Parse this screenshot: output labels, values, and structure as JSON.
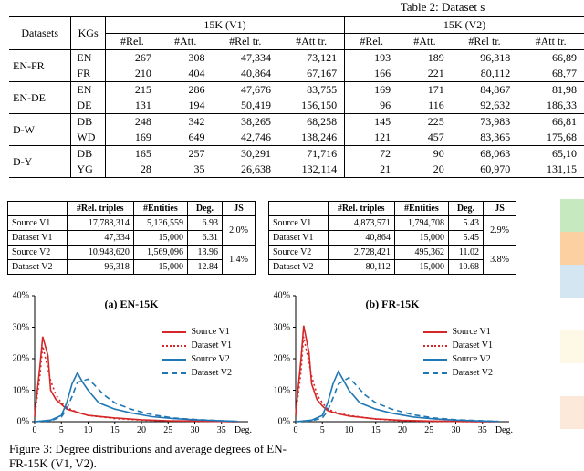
{
  "colors": {
    "text": "#000000",
    "background": "#ffffff",
    "rule": "#000000",
    "sourceV1": "#d62728",
    "datasetV1": "#d62728",
    "sourceV2": "#1f77b4",
    "datasetV2": "#1f77b4",
    "grid": "#000000"
  },
  "table2": {
    "caption": "Table 2: Dataset s",
    "head": {
      "datasets": "Datasets",
      "kgs": "KGs",
      "groups": [
        "15K (V1)",
        "15K (V2)"
      ],
      "sub": [
        "#Rel.",
        "#Att.",
        "#Rel tr.",
        "#Att tr."
      ]
    },
    "rows": [
      {
        "ds": "EN-FR",
        "kg": "EN",
        "v1": [
          "267",
          "308",
          "47,334",
          "73,121"
        ],
        "v2": [
          "193",
          "189",
          "96,318",
          "66,89"
        ]
      },
      {
        "ds": "",
        "kg": "FR",
        "v1": [
          "210",
          "404",
          "40,864",
          "67,167"
        ],
        "v2": [
          "166",
          "221",
          "80,112",
          "68,77"
        ]
      },
      {
        "ds": "EN-DE",
        "kg": "EN",
        "v1": [
          "215",
          "286",
          "47,676",
          "83,755"
        ],
        "v2": [
          "169",
          "171",
          "84,867",
          "81,98"
        ]
      },
      {
        "ds": "",
        "kg": "DE",
        "v1": [
          "131",
          "194",
          "50,419",
          "156,150"
        ],
        "v2": [
          "96",
          "116",
          "92,632",
          "186,33"
        ]
      },
      {
        "ds": "D-W",
        "kg": "DB",
        "v1": [
          "248",
          "342",
          "38,265",
          "68,258"
        ],
        "v2": [
          "145",
          "225",
          "73,983",
          "66,81"
        ]
      },
      {
        "ds": "",
        "kg": "WD",
        "v1": [
          "169",
          "649",
          "42,746",
          "138,246"
        ],
        "v2": [
          "121",
          "457",
          "83,365",
          "175,68"
        ]
      },
      {
        "ds": "D-Y",
        "kg": "DB",
        "v1": [
          "165",
          "257",
          "30,291",
          "71,716"
        ],
        "v2": [
          "72",
          "90",
          "68,063",
          "65,10"
        ]
      },
      {
        "ds": "",
        "kg": "YG",
        "v1": [
          "28",
          "35",
          "26,638",
          "132,114"
        ],
        "v2": [
          "21",
          "20",
          "60,970",
          "131,15"
        ]
      }
    ]
  },
  "miniTables": {
    "head": [
      "",
      "#Rel. triples",
      "#Entities",
      "Deg.",
      "JS"
    ],
    "left": {
      "rows": [
        [
          "Source V1",
          "17,788,314",
          "5,136,559",
          "6.93"
        ],
        [
          "Dataset V1",
          "47,334",
          "15,000",
          "6.31"
        ],
        [
          "Source V2",
          "10,948,620",
          "1,569,096",
          "13.96"
        ],
        [
          "Dataset V2",
          "96,318",
          "15,000",
          "12.84"
        ]
      ],
      "js": [
        "2.0%",
        "1.4%"
      ]
    },
    "right": {
      "rows": [
        [
          "Source V1",
          "4,873,571",
          "1,794,708",
          "5.43"
        ],
        [
          "Dataset V1",
          "40,864",
          "15,000",
          "5.45"
        ],
        [
          "Source V2",
          "2,728,421",
          "495,362",
          "11.02"
        ],
        [
          "Dataset V2",
          "80,112",
          "15,000",
          "10.68"
        ]
      ],
      "js": [
        "2.9%",
        "3.8%"
      ]
    }
  },
  "charts": {
    "type": "line",
    "xlim": [
      0,
      40
    ],
    "xticks": [
      0,
      5,
      10,
      15,
      20,
      25,
      30,
      35
    ],
    "ylim": [
      0,
      0.4
    ],
    "yticks": [
      0,
      0.1,
      0.2,
      0.3,
      0.4
    ],
    "ytick_labels": [
      "0%",
      "10%",
      "20%",
      "30%",
      "40%"
    ],
    "xlabel": "Deg.",
    "legend": [
      "Source V1",
      "Dataset V1",
      "Source V2",
      "Dataset V2"
    ],
    "panel_a": {
      "title": "(a) EN-15K",
      "sourceV1": [
        [
          0,
          0.02
        ],
        [
          1,
          0.18
        ],
        [
          1.5,
          0.27
        ],
        [
          2.5,
          0.21
        ],
        [
          3,
          0.1
        ],
        [
          4,
          0.07
        ],
        [
          5,
          0.055
        ],
        [
          6,
          0.04
        ],
        [
          8,
          0.03
        ],
        [
          10,
          0.02
        ],
        [
          15,
          0.012
        ],
        [
          20,
          0.006
        ],
        [
          25,
          0.003
        ],
        [
          30,
          0.002
        ],
        [
          35,
          0.001
        ],
        [
          38,
          0.0
        ]
      ],
      "datasetV1": [
        [
          0,
          0.015
        ],
        [
          1,
          0.15
        ],
        [
          1.5,
          0.24
        ],
        [
          3,
          0.13
        ],
        [
          4,
          0.085
        ],
        [
          5,
          0.06
        ],
        [
          6,
          0.045
        ],
        [
          8,
          0.03
        ],
        [
          10,
          0.02
        ],
        [
          15,
          0.01
        ],
        [
          20,
          0.005
        ],
        [
          25,
          0.003
        ],
        [
          30,
          0.0015
        ],
        [
          35,
          0.001
        ],
        [
          38,
          0.0
        ]
      ],
      "sourceV2": [
        [
          0,
          0.0
        ],
        [
          3,
          0.005
        ],
        [
          5,
          0.02
        ],
        [
          6,
          0.06
        ],
        [
          7,
          0.12
        ],
        [
          8,
          0.155
        ],
        [
          9,
          0.125
        ],
        [
          10,
          0.1
        ],
        [
          12,
          0.06
        ],
        [
          15,
          0.04
        ],
        [
          18,
          0.028
        ],
        [
          22,
          0.016
        ],
        [
          26,
          0.01
        ],
        [
          30,
          0.006
        ],
        [
          35,
          0.003
        ],
        [
          38,
          0.001
        ]
      ],
      "datasetV2": [
        [
          0,
          0.0
        ],
        [
          3,
          0.003
        ],
        [
          5,
          0.015
        ],
        [
          6,
          0.04
        ],
        [
          7,
          0.08
        ],
        [
          8,
          0.125
        ],
        [
          10,
          0.135
        ],
        [
          11,
          0.12
        ],
        [
          13,
          0.085
        ],
        [
          15,
          0.06
        ],
        [
          18,
          0.04
        ],
        [
          22,
          0.022
        ],
        [
          26,
          0.012
        ],
        [
          30,
          0.007
        ],
        [
          35,
          0.003
        ],
        [
          38,
          0.001
        ]
      ]
    },
    "panel_b": {
      "title": "(b) FR-15K",
      "sourceV1": [
        [
          0,
          0.025
        ],
        [
          1,
          0.2
        ],
        [
          1.5,
          0.305
        ],
        [
          2.5,
          0.22
        ],
        [
          3,
          0.12
        ],
        [
          4,
          0.07
        ],
        [
          5,
          0.05
        ],
        [
          6,
          0.035
        ],
        [
          8,
          0.025
        ],
        [
          10,
          0.018
        ],
        [
          15,
          0.009
        ],
        [
          20,
          0.004
        ],
        [
          25,
          0.002
        ],
        [
          30,
          0.001
        ],
        [
          35,
          0.0
        ],
        [
          38,
          0.0
        ]
      ],
      "datasetV1": [
        [
          0,
          0.02
        ],
        [
          1,
          0.16
        ],
        [
          1.5,
          0.27
        ],
        [
          3,
          0.145
        ],
        [
          4,
          0.085
        ],
        [
          5,
          0.06
        ],
        [
          6,
          0.04
        ],
        [
          8,
          0.027
        ],
        [
          10,
          0.02
        ],
        [
          15,
          0.008
        ],
        [
          20,
          0.003
        ],
        [
          25,
          0.0015
        ],
        [
          30,
          0.001
        ],
        [
          35,
          0.0
        ],
        [
          38,
          0.0
        ]
      ],
      "sourceV2": [
        [
          0,
          0.0
        ],
        [
          3,
          0.005
        ],
        [
          5,
          0.02
        ],
        [
          6,
          0.06
        ],
        [
          7,
          0.12
        ],
        [
          8,
          0.16
        ],
        [
          9,
          0.13
        ],
        [
          10,
          0.1
        ],
        [
          12,
          0.06
        ],
        [
          15,
          0.04
        ],
        [
          18,
          0.027
        ],
        [
          22,
          0.015
        ],
        [
          26,
          0.009
        ],
        [
          30,
          0.005
        ],
        [
          35,
          0.002
        ],
        [
          38,
          0.001
        ]
      ],
      "datasetV2": [
        [
          0,
          0.0
        ],
        [
          3,
          0.003
        ],
        [
          5,
          0.012
        ],
        [
          6,
          0.035
        ],
        [
          7,
          0.075
        ],
        [
          8,
          0.12
        ],
        [
          10,
          0.14
        ],
        [
          11,
          0.122
        ],
        [
          13,
          0.085
        ],
        [
          15,
          0.06
        ],
        [
          18,
          0.04
        ],
        [
          22,
          0.022
        ],
        [
          26,
          0.012
        ],
        [
          30,
          0.006
        ],
        [
          35,
          0.003
        ],
        [
          38,
          0.001
        ]
      ]
    }
  },
  "fig3": {
    "caption1": "Figure 3: Degree distributions and average degrees of EN-",
    "caption2": "FR-15K (V1, V2)."
  },
  "swatches": [
    "#c7e9c0",
    "#fdd0a2",
    "#d4e6f1",
    "#ffffff",
    "#fef9e7",
    "#ffffff",
    "#fde9d9"
  ]
}
